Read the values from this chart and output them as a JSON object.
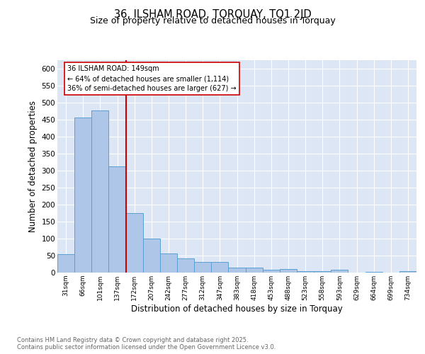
{
  "title1": "36, ILSHAM ROAD, TORQUAY, TQ1 2JD",
  "title2": "Size of property relative to detached houses in Torquay",
  "xlabel": "Distribution of detached houses by size in Torquay",
  "ylabel": "Number of detached properties",
  "categories": [
    "31sqm",
    "66sqm",
    "101sqm",
    "137sqm",
    "172sqm",
    "207sqm",
    "242sqm",
    "277sqm",
    "312sqm",
    "347sqm",
    "383sqm",
    "418sqm",
    "453sqm",
    "488sqm",
    "523sqm",
    "558sqm",
    "593sqm",
    "629sqm",
    "664sqm",
    "699sqm",
    "734sqm"
  ],
  "values": [
    54,
    456,
    477,
    313,
    175,
    101,
    57,
    42,
    31,
    31,
    15,
    14,
    9,
    10,
    5,
    5,
    9,
    1,
    2,
    1,
    4
  ],
  "bar_color": "#aec6e8",
  "bar_edgecolor": "#5a9fd4",
  "vline_index": 3,
  "vline_color": "#cc0000",
  "annotation_text": "36 ILSHAM ROAD: 149sqm\n← 64% of detached houses are smaller (1,114)\n36% of semi-detached houses are larger (627) →",
  "ylim_max": 625,
  "yticks": [
    0,
    50,
    100,
    150,
    200,
    250,
    300,
    350,
    400,
    450,
    500,
    550,
    600
  ],
  "grid_color": "#ffffff",
  "bg_color": "#dce6f5",
  "footer_line1": "Contains HM Land Registry data © Crown copyright and database right 2025.",
  "footer_line2": "Contains public sector information licensed under the Open Government Licence v3.0."
}
